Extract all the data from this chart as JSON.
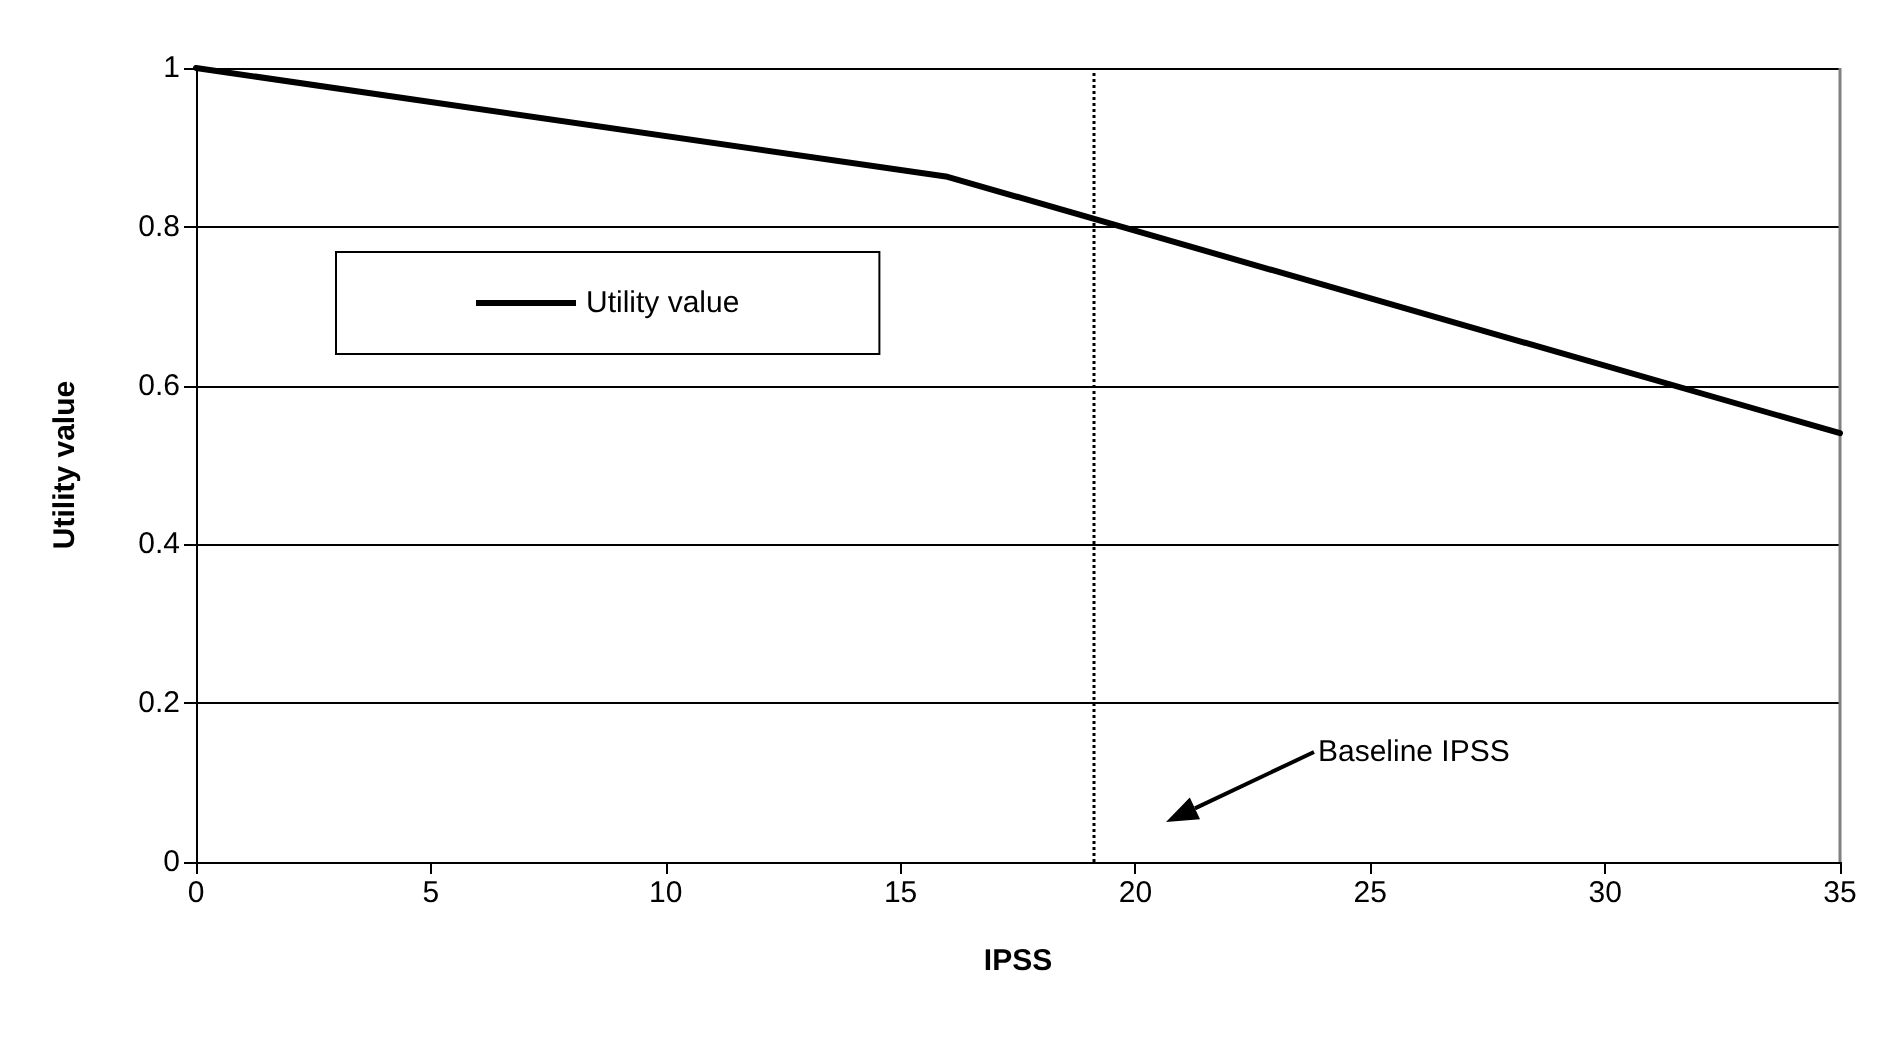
{
  "chart_data": {
    "type": "line",
    "xlabel": "IPSS",
    "ylabel": "Utility value",
    "x": [
      0,
      16,
      35
    ],
    "series": [
      {
        "name": "Utility value",
        "color": "#000000",
        "values": [
          1,
          0.863,
          0.54
        ]
      }
    ],
    "xlim": [
      0,
      35
    ],
    "xticks": [
      0,
      5,
      10,
      15,
      20,
      25,
      30,
      35
    ],
    "ylim": [
      0,
      1
    ],
    "yticks": [
      0,
      0.2,
      0.4,
      0.6,
      0.8,
      1
    ],
    "ref_lines": [
      {
        "axis": "x",
        "value": 19.1,
        "color": "#000000",
        "line_style": "dotted"
      }
    ],
    "annotations": [
      "Baseline IPSS"
    ],
    "grid": "y",
    "legend": "top left",
    "marker": "none",
    "line_style": "solid"
  }
}
